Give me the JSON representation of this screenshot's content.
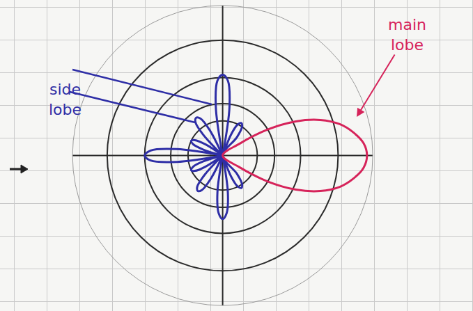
{
  "chart_data": {
    "type": "polar",
    "rlim": [
      0,
      5.2
    ],
    "rticks": [
      1.2,
      1.8,
      2.7,
      4
    ],
    "thetaticks": [
      0,
      90,
      180,
      270
    ],
    "grid": true,
    "tick_labels": false,
    "series": [
      {
        "color": "#2e2ea6",
        "theta": [
          48,
          52,
          56,
          60,
          64,
          68,
          72,
          78,
          82,
          86,
          90,
          94,
          98,
          102,
          113,
          117,
          121,
          125,
          129,
          133,
          137,
          143,
          147,
          151,
          155,
          159,
          163,
          167,
          168,
          172,
          176,
          180,
          184,
          188,
          192,
          193,
          197,
          201,
          205,
          209,
          213,
          217,
          223,
          227,
          231,
          235,
          239,
          243,
          247,
          258,
          262,
          266,
          270,
          274,
          278,
          282,
          288,
          292,
          296,
          300,
          304,
          308,
          312
        ],
        "r": [
          0,
          0.8,
          1.2,
          1.3,
          1.2,
          0.8,
          0,
          0,
          1.7,
          2.6,
          2.8,
          2.6,
          1.7,
          0,
          0,
          1.0,
          1.5,
          1.6,
          1.5,
          1.0,
          0,
          0,
          0.7,
          1.1,
          1.2,
          1.1,
          0.7,
          0,
          0,
          1.6,
          2.5,
          2.7,
          2.5,
          1.6,
          0,
          0,
          0.7,
          1.1,
          1.2,
          1.1,
          0.7,
          0,
          0,
          0.9,
          1.4,
          1.5,
          1.4,
          0.9,
          0,
          0,
          1.3,
          2.0,
          2.2,
          2.0,
          1.3,
          0,
          0,
          0.8,
          1.2,
          1.3,
          1.2,
          0.8,
          0
        ]
      },
      {
        "color": "#d6235a",
        "theta": [
          -40,
          -35,
          -30,
          -25,
          -20,
          -15,
          -10,
          -5,
          0,
          5,
          10,
          15,
          20,
          25,
          30,
          35,
          40
        ],
        "r": [
          0,
          0.7,
          1.8,
          2.8,
          3.6,
          4.2,
          4.6,
          4.9,
          5.0,
          4.9,
          4.6,
          4.2,
          3.6,
          2.8,
          1.8,
          0.7,
          0
        ]
      }
    ],
    "annotations": [
      {
        "text": "side lobe",
        "color": "#2e2ea6"
      },
      {
        "text": "main lobe",
        "color": "#d6235a"
      }
    ]
  }
}
